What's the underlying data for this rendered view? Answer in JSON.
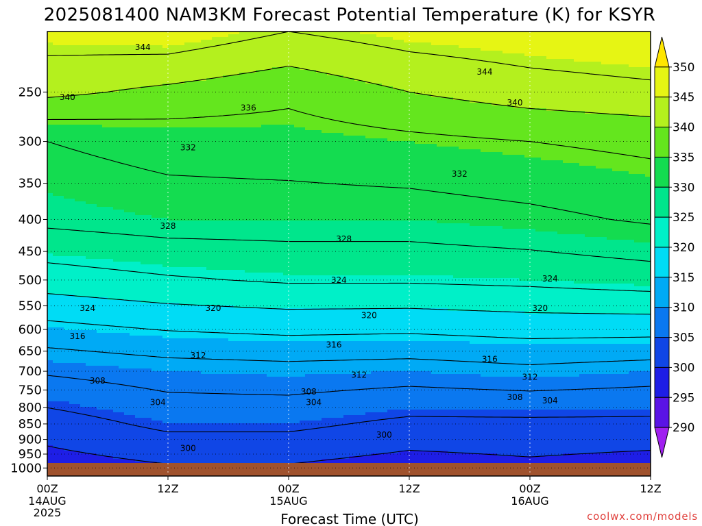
{
  "chart_data": {
    "type": "heatmap",
    "title": "2025081400 NAM3KM Forecast Potential Temperature (K) for KSYR",
    "xlabel": "Forecast Time (UTC)",
    "ylabel": "",
    "watermark": "coolwx.com/models",
    "x_ticks": [
      {
        "label": "00Z",
        "sub": [
          "14AUG",
          "2025"
        ],
        "hour": 0
      },
      {
        "label": "12Z",
        "sub": [],
        "hour": 12
      },
      {
        "label": "00Z",
        "sub": [
          "15AUG"
        ],
        "hour": 24
      },
      {
        "label": "12Z",
        "sub": [],
        "hour": 36
      },
      {
        "label": "00Z",
        "sub": [
          "16AUG"
        ],
        "hour": 48
      },
      {
        "label": "12Z",
        "sub": [],
        "hour": 60
      }
    ],
    "xlim": [
      0,
      60
    ],
    "y_axis": {
      "scale": "pressure (log, inverted)",
      "ylim": [
        1030,
        200
      ]
    },
    "y_ticks": [
      250,
      300,
      350,
      400,
      450,
      500,
      550,
      600,
      650,
      700,
      750,
      800,
      850,
      900,
      950,
      1000
    ],
    "ground_color": "#a0522d",
    "colorbar": {
      "levels": [
        290,
        295,
        300,
        305,
        310,
        315,
        320,
        325,
        330,
        335,
        340,
        345,
        350
      ],
      "labels": [
        "290",
        "295",
        "300",
        "305",
        "310",
        "315",
        "320",
        "325",
        "330",
        "335",
        "340",
        "345",
        "350"
      ],
      "colors": [
        "#a020f0",
        "#5a14e6",
        "#1e1ee6",
        "#1046e6",
        "#0a78f0",
        "#00aaf5",
        "#00dcf5",
        "#00f0c8",
        "#00e68c",
        "#14dc50",
        "#64e61e",
        "#b4f01e",
        "#e6f514",
        "#ffe600"
      ]
    },
    "contour_interval": 4,
    "contour_level_range": [
      296,
      344
    ],
    "profiles": [
      {
        "hour": 0,
        "theta": [
          [
            1000,
            298
          ],
          [
            850,
            302
          ],
          [
            700,
            308.5
          ],
          [
            500,
            322
          ],
          [
            400,
            329
          ],
          [
            300,
            332
          ],
          [
            250,
            341
          ],
          [
            200,
            346
          ]
        ]
      },
      {
        "hour": 12,
        "theta": [
          [
            1000,
            299.5
          ],
          [
            850,
            305
          ],
          [
            700,
            310
          ],
          [
            500,
            323.5
          ],
          [
            400,
            330
          ],
          [
            300,
            333.5
          ],
          [
            250,
            339
          ],
          [
            200,
            347
          ]
        ]
      },
      {
        "hour": 24,
        "theta": [
          [
            1000,
            299.5
          ],
          [
            850,
            305
          ],
          [
            700,
            310.5
          ],
          [
            500,
            324.5
          ],
          [
            400,
            330
          ],
          [
            300,
            334
          ],
          [
            250,
            337
          ],
          [
            200,
            344
          ]
        ]
      },
      {
        "hour": 36,
        "theta": [
          [
            1000,
            298
          ],
          [
            850,
            303
          ],
          [
            700,
            310
          ],
          [
            500,
            324.5
          ],
          [
            400,
            330
          ],
          [
            300,
            335
          ],
          [
            250,
            340
          ],
          [
            200,
            346
          ]
        ]
      },
      {
        "hour": 48,
        "theta": [
          [
            1000,
            299
          ],
          [
            850,
            303
          ],
          [
            700,
            311
          ],
          [
            500,
            325
          ],
          [
            400,
            331
          ],
          [
            300,
            336
          ],
          [
            250,
            342
          ],
          [
            200,
            347
          ]
        ]
      },
      {
        "hour": 60,
        "theta": [
          [
            1000,
            298
          ],
          [
            850,
            303
          ],
          [
            700,
            310
          ],
          [
            500,
            326
          ],
          [
            400,
            332.5
          ],
          [
            300,
            337
          ],
          [
            250,
            343
          ],
          [
            200,
            348
          ]
        ]
      }
    ],
    "contour_labels": [
      {
        "text": "344",
        "hour": 9.5,
        "p": 212
      },
      {
        "text": "344",
        "hour": 43.5,
        "p": 232
      },
      {
        "text": "340",
        "hour": 2,
        "p": 255
      },
      {
        "text": "340",
        "hour": 46.5,
        "p": 260
      },
      {
        "text": "336",
        "hour": 20,
        "p": 265
      },
      {
        "text": "332",
        "hour": 14,
        "p": 307
      },
      {
        "text": "332",
        "hour": 41,
        "p": 338
      },
      {
        "text": "328",
        "hour": 12,
        "p": 410
      },
      {
        "text": "328",
        "hour": 29.5,
        "p": 430
      },
      {
        "text": "324",
        "hour": 4,
        "p": 555
      },
      {
        "text": "324",
        "hour": 29,
        "p": 500
      },
      {
        "text": "324",
        "hour": 50,
        "p": 498
      },
      {
        "text": "320",
        "hour": 16.5,
        "p": 555
      },
      {
        "text": "320",
        "hour": 32,
        "p": 570
      },
      {
        "text": "320",
        "hour": 49,
        "p": 555
      },
      {
        "text": "316",
        "hour": 3,
        "p": 615
      },
      {
        "text": "316",
        "hour": 28.5,
        "p": 635
      },
      {
        "text": "316",
        "hour": 44,
        "p": 670
      },
      {
        "text": "312",
        "hour": 15,
        "p": 660
      },
      {
        "text": "312",
        "hour": 31,
        "p": 710
      },
      {
        "text": "312",
        "hour": 48,
        "p": 715
      },
      {
        "text": "308",
        "hour": 5,
        "p": 725
      },
      {
        "text": "308",
        "hour": 26,
        "p": 755
      },
      {
        "text": "308",
        "hour": 46.5,
        "p": 770
      },
      {
        "text": "304",
        "hour": 11,
        "p": 785
      },
      {
        "text": "304",
        "hour": 26.5,
        "p": 785
      },
      {
        "text": "304",
        "hour": 50,
        "p": 780
      },
      {
        "text": "300",
        "hour": 14,
        "p": 930
      },
      {
        "text": "300",
        "hour": 33.5,
        "p": 885
      }
    ]
  }
}
